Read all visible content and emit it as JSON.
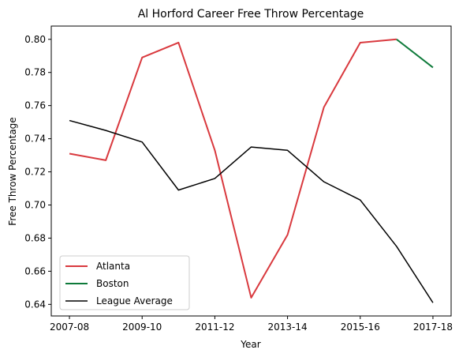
{
  "chart_data": {
    "type": "line",
    "title": "Al Horford Career Free Throw Percentage",
    "xlabel": "Year",
    "ylabel": "Free Throw Percentage",
    "x_ticks": [
      "2007-08",
      "2009-10",
      "2011-12",
      "2013-14",
      "2015-16",
      "2017-18"
    ],
    "x_tick_positions": [
      0,
      2,
      4,
      6,
      8,
      10
    ],
    "xlim": [
      -0.5,
      10.5
    ],
    "y_ticks": [
      "0.64",
      "0.66",
      "0.68",
      "0.70",
      "0.72",
      "0.74",
      "0.76",
      "0.78",
      "0.80"
    ],
    "y_tick_values": [
      0.64,
      0.66,
      0.68,
      0.7,
      0.72,
      0.74,
      0.76,
      0.78,
      0.8
    ],
    "ylim": [
      0.633,
      0.808
    ],
    "grid": false,
    "legend_position": "lower-left",
    "series": [
      {
        "name": "Atlanta",
        "color": "#d9393e",
        "linewidth": 2,
        "x": [
          0,
          1,
          2,
          3,
          4,
          5,
          6,
          7,
          8,
          9
        ],
        "y": [
          0.731,
          0.727,
          0.789,
          0.798,
          0.733,
          0.644,
          0.682,
          0.759,
          0.798,
          0.8
        ]
      },
      {
        "name": "Boston",
        "color": "#0e7a3a",
        "linewidth": 2,
        "x": [
          9,
          10
        ],
        "y": [
          0.8,
          0.783
        ]
      },
      {
        "name": "League Average",
        "color": "#000000",
        "linewidth": 1.5,
        "x": [
          0,
          1,
          2,
          3,
          4,
          5,
          6,
          7,
          8,
          9,
          10
        ],
        "y": [
          0.751,
          0.745,
          0.738,
          0.709,
          0.716,
          0.735,
          0.733,
          0.714,
          0.703,
          0.675,
          0.641
        ]
      }
    ]
  }
}
